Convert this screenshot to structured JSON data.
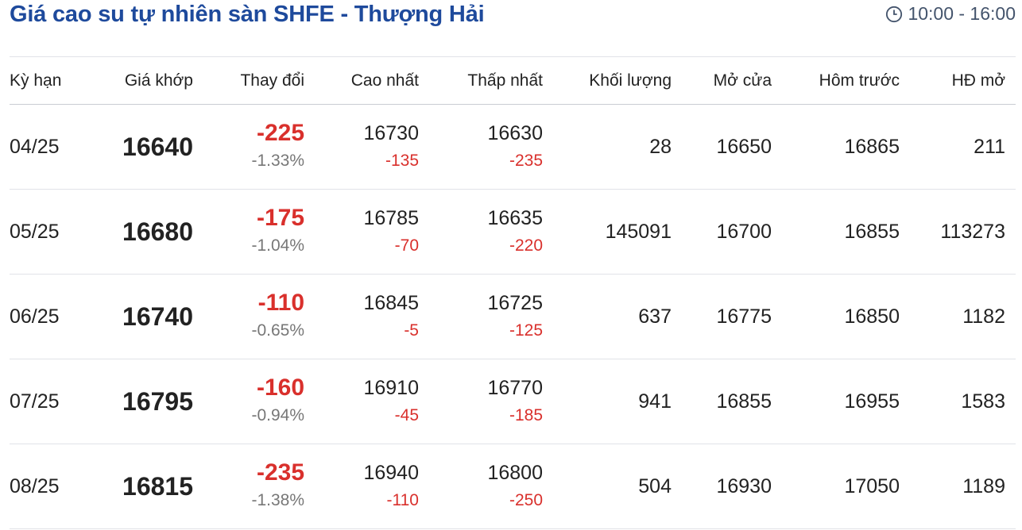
{
  "title": "Giá cao su tự nhiên sàn SHFE - Thượng Hải",
  "hours": {
    "icon": "clock-icon",
    "text": "10:00 - 16:00"
  },
  "colors": {
    "title": "#1e4a9c",
    "negative": "#d9302c"
  },
  "headers": [
    "Kỳ hạn",
    "Giá khớp",
    "Thay đổi",
    "Cao nhất",
    "Thấp nhất",
    "Khối lượng",
    "Mở cửa",
    "Hôm trước",
    "HĐ mở"
  ],
  "rows": [
    {
      "term": "04/25",
      "price": "16640",
      "change": "-225",
      "pct": "-1.33%",
      "high": "16730",
      "high_d": "-135",
      "low": "16630",
      "low_d": "-235",
      "volume": "28",
      "open": "16650",
      "prev": "16865",
      "oi": "211"
    },
    {
      "term": "05/25",
      "price": "16680",
      "change": "-175",
      "pct": "-1.04%",
      "high": "16785",
      "high_d": "-70",
      "low": "16635",
      "low_d": "-220",
      "volume": "145091",
      "open": "16700",
      "prev": "16855",
      "oi": "113273"
    },
    {
      "term": "06/25",
      "price": "16740",
      "change": "-110",
      "pct": "-0.65%",
      "high": "16845",
      "high_d": "-5",
      "low": "16725",
      "low_d": "-125",
      "volume": "637",
      "open": "16775",
      "prev": "16850",
      "oi": "1182"
    },
    {
      "term": "07/25",
      "price": "16795",
      "change": "-160",
      "pct": "-0.94%",
      "high": "16910",
      "high_d": "-45",
      "low": "16770",
      "low_d": "-185",
      "volume": "941",
      "open": "16855",
      "prev": "16955",
      "oi": "1583"
    },
    {
      "term": "08/25",
      "price": "16815",
      "change": "-235",
      "pct": "-1.38%",
      "high": "16940",
      "high_d": "-110",
      "low": "16800",
      "low_d": "-250",
      "volume": "504",
      "open": "16930",
      "prev": "17050",
      "oi": "1189"
    }
  ]
}
